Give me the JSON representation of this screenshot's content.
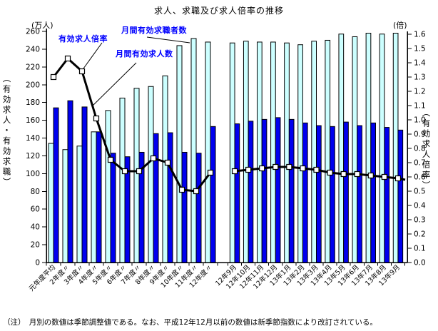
{
  "note": "（注）　月別の数値は季節調整値である。なお、平成12年12月以前の数値は新季節指数により改訂されている。",
  "chart_data": {
    "type": "bar",
    "subtype": "grouped-bars-with-line-overlay",
    "title": "求人、求職及び求人倍率の推移",
    "legend_position": "in-plot-annotations",
    "grid": false,
    "left_axis": {
      "unit": "(万人)",
      "label": "（有効求人・有効求職）",
      "min": 0,
      "max": 260,
      "step": 20
    },
    "right_axis": {
      "unit": "(倍)",
      "label": "（有効求人倍率）",
      "min": 0.0,
      "max": 1.6,
      "step": 0.1
    },
    "series": [
      {
        "name": "月間有効求職者数",
        "role": "seekers",
        "type": "bar",
        "axis": "left",
        "color": "#CCFFFF"
      },
      {
        "name": "月間有効求人数",
        "role": "openings",
        "type": "bar",
        "axis": "left",
        "color": "#0000EE"
      },
      {
        "name": "有効求人倍率",
        "role": "ratio",
        "type": "line",
        "axis": "right",
        "color": "#000000",
        "marker": "white-square"
      }
    ],
    "sections": [
      {
        "id": "annual",
        "categories": [
          "元年度平均",
          "2年度〃",
          "3年度〃",
          "4年度〃",
          "5年度〃",
          "6年度〃",
          "7年度〃",
          "8年度〃",
          "9年度〃",
          "10年度〃",
          "11年度〃",
          "12年度〃"
        ],
        "seekers": [
          134,
          127,
          131,
          147,
          171,
          185,
          196,
          198,
          210,
          244,
          252,
          248
        ],
        "openings": [
          174,
          182,
          175,
          147,
          123,
          119,
          124,
          145,
          146,
          124,
          123,
          153
        ],
        "ratio": [
          1.3,
          1.43,
          1.34,
          1.01,
          0.72,
          0.64,
          0.64,
          0.73,
          0.7,
          0.51,
          0.5,
          0.63
        ]
      },
      {
        "id": "monthly",
        "categories": [
          "12年9月",
          "12年10月",
          "12年11月",
          "12年12月",
          "13年1月",
          "13年2月",
          "13年3月",
          "13年4月",
          "13年5月",
          "13年6月",
          "13年7月",
          "13年8月",
          "13年9月"
        ],
        "seekers": [
          247,
          249,
          248,
          248,
          247,
          245,
          249,
          250,
          257,
          254,
          258,
          257,
          258
        ],
        "openings": [
          156,
          159,
          161,
          163,
          161,
          157,
          154,
          153,
          158,
          154,
          157,
          152,
          149
        ],
        "ratio": [
          0.64,
          0.65,
          0.66,
          0.67,
          0.67,
          0.66,
          0.65,
          0.63,
          0.62,
          0.62,
          0.61,
          0.6,
          0.59
        ]
      }
    ]
  }
}
